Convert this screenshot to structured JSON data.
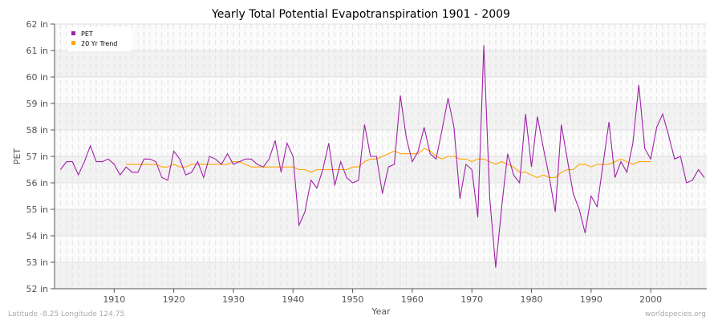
{
  "chart_data": {
    "type": "line",
    "title": "Yearly Total Potential Evapotranspiration 1901 - 2009",
    "xlabel": "Year",
    "ylabel": "PET",
    "xlim": [
      1901,
      2009
    ],
    "ylim": [
      52,
      62
    ],
    "x_ticks": [
      1910,
      1920,
      1930,
      1940,
      1950,
      1960,
      1970,
      1980,
      1990,
      2000
    ],
    "y_ticks": [
      52,
      53,
      54,
      55,
      56,
      57,
      58,
      59,
      60,
      61,
      62
    ],
    "y_tick_labels": [
      "52 in",
      "53 in",
      "54 in",
      "55 in",
      "56 in",
      "57 in",
      "58 in",
      "59 in",
      "60 in",
      "61 in",
      "62 in"
    ],
    "grid": true,
    "legend_position": "top-left",
    "series": [
      {
        "name": "PET",
        "color": "#a020a8",
        "x_start": 1901,
        "values": [
          56.5,
          56.8,
          56.8,
          56.3,
          56.8,
          57.4,
          56.8,
          56.8,
          56.9,
          56.7,
          56.3,
          56.6,
          56.4,
          56.4,
          56.9,
          56.9,
          56.8,
          56.2,
          56.1,
          57.2,
          56.9,
          56.3,
          56.4,
          56.8,
          56.2,
          57.0,
          56.9,
          56.7,
          57.1,
          56.7,
          56.8,
          56.9,
          56.9,
          56.7,
          56.6,
          56.9,
          57.6,
          56.4,
          57.5,
          57.0,
          54.4,
          54.9,
          56.1,
          55.8,
          56.5,
          57.5,
          55.9,
          56.8,
          56.2,
          56.0,
          56.1,
          58.2,
          57.0,
          57.0,
          55.6,
          56.6,
          56.7,
          59.3,
          57.7,
          56.8,
          57.2,
          58.1,
          57.1,
          56.9,
          58.0,
          59.2,
          58.1,
          55.4,
          56.7,
          56.5,
          54.7,
          61.2,
          55.4,
          52.8,
          55.1,
          57.1,
          56.3,
          56.0,
          58.6,
          56.6,
          58.5,
          57.3,
          56.2,
          54.9,
          58.2,
          56.9,
          55.6,
          55.0,
          54.1,
          55.5,
          55.1,
          56.7,
          58.3,
          56.2,
          56.8,
          56.4,
          57.5,
          59.7,
          57.3,
          56.9,
          58.1,
          58.6,
          57.8,
          56.9,
          57.0,
          56.0,
          56.1,
          56.5,
          56.2
        ]
      },
      {
        "name": "20 Yr Trend",
        "color": "#ffa500",
        "x_start": 1912,
        "values": [
          56.7,
          56.7,
          56.7,
          56.7,
          56.7,
          56.7,
          56.6,
          56.6,
          56.7,
          56.6,
          56.6,
          56.7,
          56.7,
          56.7,
          56.7,
          56.7,
          56.7,
          56.7,
          56.8,
          56.8,
          56.7,
          56.6,
          56.6,
          56.6,
          56.6,
          56.6,
          56.6,
          56.6,
          56.6,
          56.5,
          56.5,
          56.4,
          56.5,
          56.5,
          56.5,
          56.5,
          56.5,
          56.5,
          56.6,
          56.6,
          56.8,
          56.9,
          56.9,
          57.0,
          57.1,
          57.2,
          57.1,
          57.1,
          57.1,
          57.1,
          57.3,
          57.2,
          57.0,
          56.9,
          57.0,
          57.0,
          56.9,
          56.9,
          56.8,
          56.9,
          56.9,
          56.8,
          56.7,
          56.8,
          56.7,
          56.6,
          56.4,
          56.4,
          56.3,
          56.2,
          56.3,
          56.2,
          56.2,
          56.4,
          56.5,
          56.5,
          56.7,
          56.7,
          56.6,
          56.7,
          56.7,
          56.7,
          56.8,
          56.9,
          56.8,
          56.7,
          56.8,
          56.8,
          56.8
        ]
      }
    ]
  },
  "footer": {
    "location": "Latitude -8.25 Longitude 124.75",
    "source": "worldspecies.org"
  }
}
